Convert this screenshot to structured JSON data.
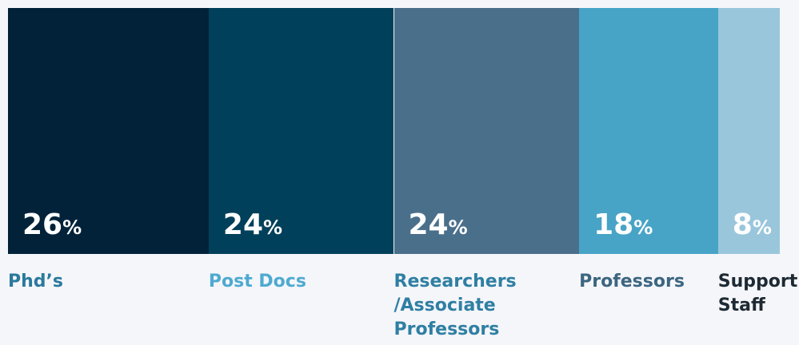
{
  "chart_data": {
    "type": "stacked_bar_100",
    "categories": [
      "Phd’s",
      "Post Docs",
      "Researchers /Associate Professors",
      "Professors",
      "Support Staff"
    ],
    "values": [
      26,
      24,
      24,
      18,
      8
    ],
    "value_labels": [
      "26%",
      "24%",
      "24%",
      "18%",
      "8%"
    ],
    "colors": [
      "#02223a",
      "#01405a",
      "#4a6f8b",
      "#48a4c6",
      "#9ac6dc"
    ],
    "label_colors": [
      "#2a7a9c",
      "#4eaad0",
      "#2f7fa3",
      "#3c6680",
      "#1e2a33"
    ],
    "xlim": [
      0,
      100
    ]
  }
}
